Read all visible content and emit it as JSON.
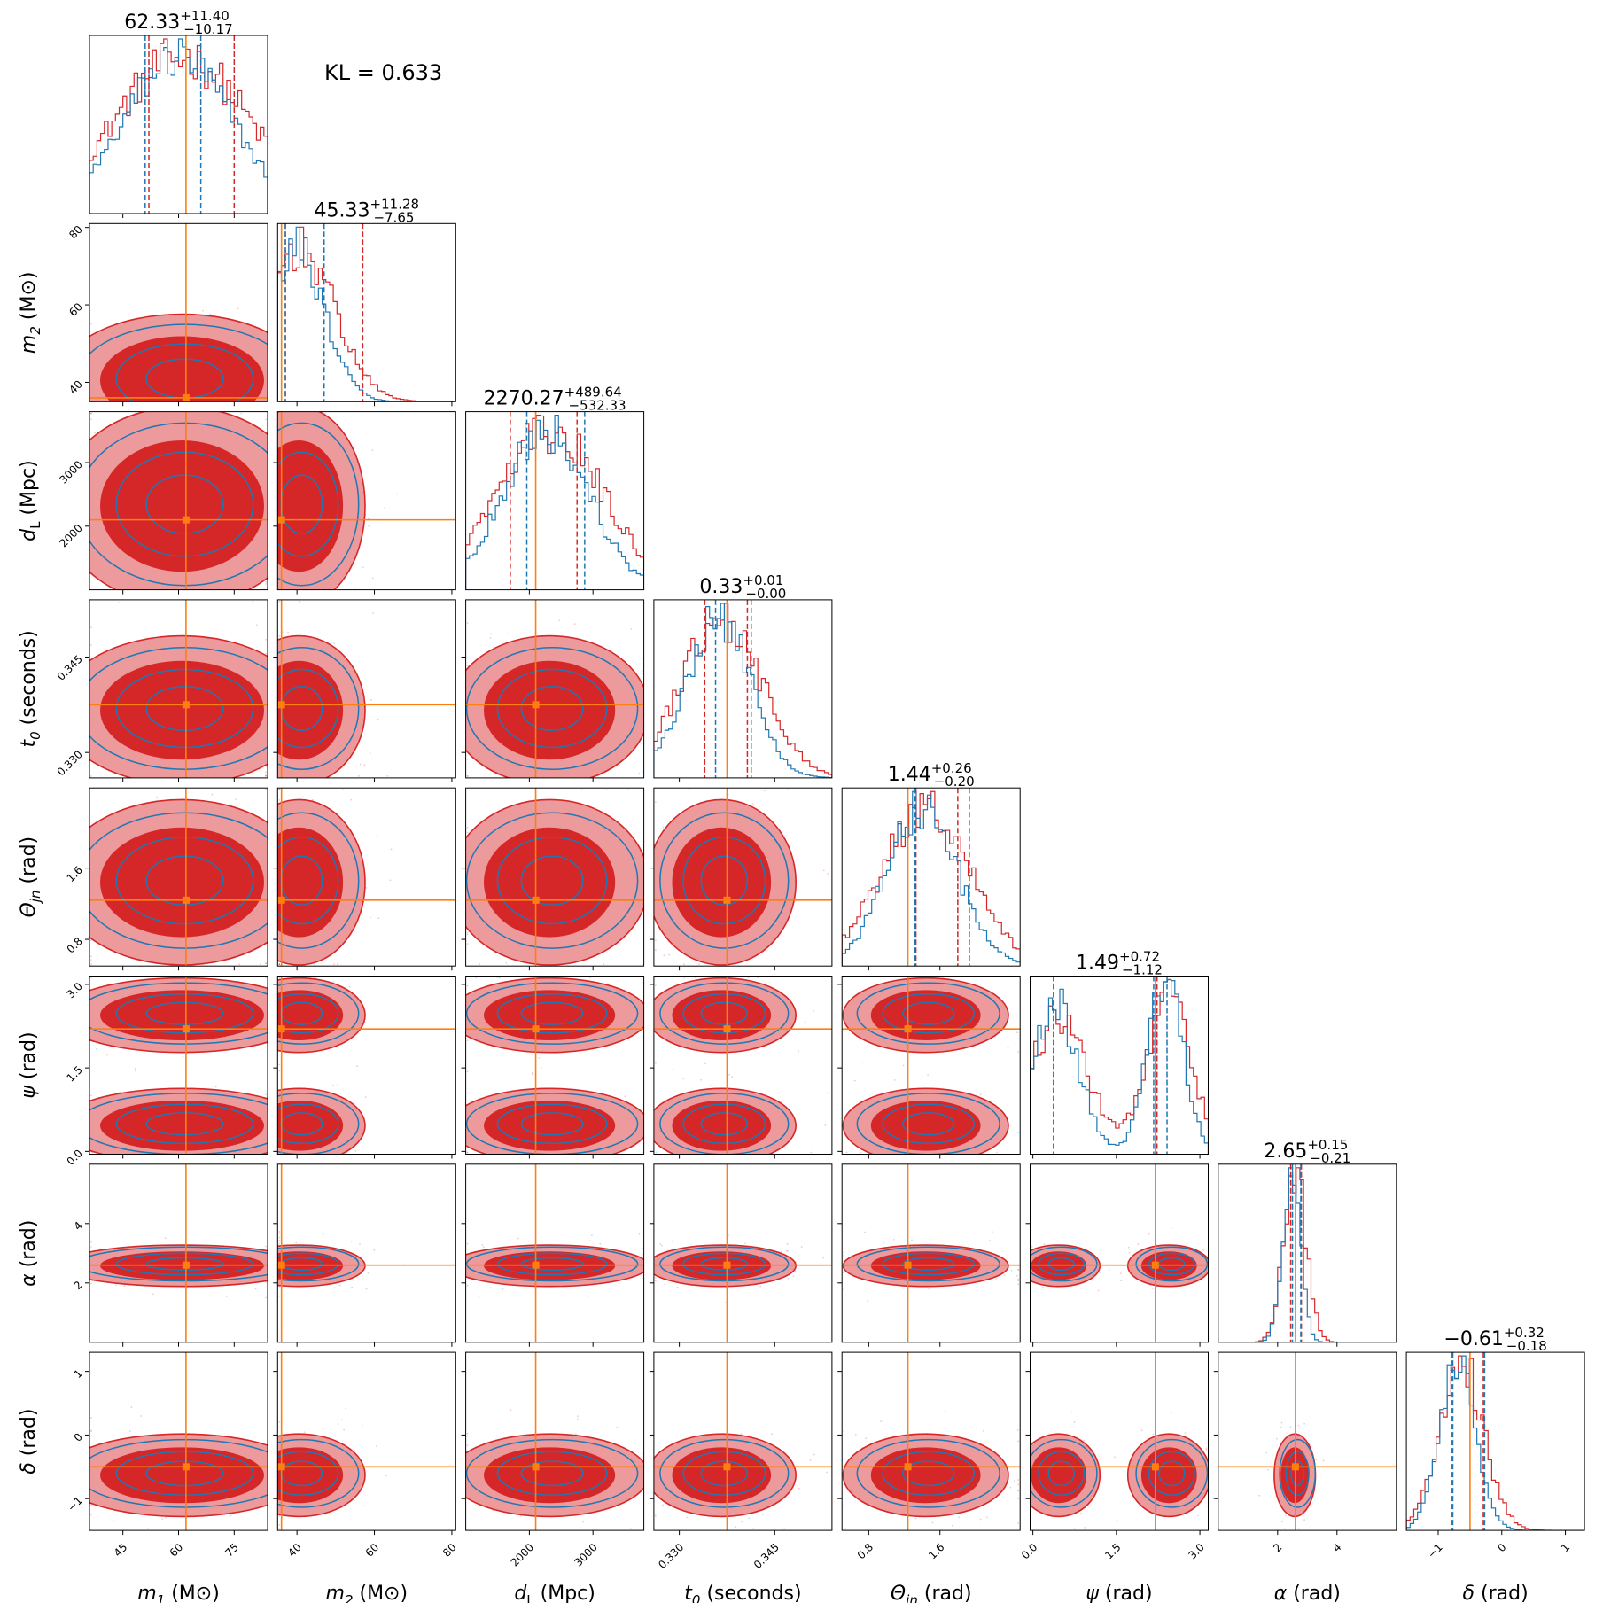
{
  "figure": {
    "kl_text": "KL = 0.633",
    "colors": {
      "red": "#d62728",
      "red_light": "#ec9a9b",
      "blue": "#1f77b4",
      "orange": "#ff7f0e"
    }
  },
  "chart_data": {
    "type": "corner",
    "series": [
      {
        "name": "",
        "color": "#d62728",
        "style": "filled contours + step histograms"
      },
      {
        "name": "",
        "color": "#1f77b4",
        "style": "line contours + step histograms"
      }
    ],
    "injection_color": "#ff7f0e",
    "parameters": [
      {
        "key": "m1",
        "label_main": "m",
        "label_sub": "1",
        "label_unit": " (M⊙)",
        "range": [
          36,
          84
        ],
        "ticks": [
          45,
          60,
          75
        ],
        "tick_labels": [
          "45",
          "60",
          "75"
        ],
        "truth": 62,
        "title": {
          "median": "62.33",
          "plus": "+11.40",
          "minus": "−10.17"
        },
        "quantiles_red": [
          52,
          75
        ],
        "quantiles_blue": [
          51,
          66
        ]
      },
      {
        "key": "m2",
        "label_main": "m",
        "label_sub": "2",
        "label_unit": " (M⊙)",
        "range": [
          35,
          81
        ],
        "ticks": [
          40,
          60,
          80
        ],
        "tick_labels": [
          "40",
          "60",
          "80"
        ],
        "truth": 36,
        "title": {
          "median": "45.33",
          "plus": "+11.28",
          "minus": "−7.65"
        },
        "quantiles_red": [
          37,
          57
        ],
        "quantiles_blue": [
          37,
          47
        ]
      },
      {
        "key": "dL",
        "label_main": "d",
        "label_sub": "L",
        "label_unit": " (Mpc)",
        "range": [
          1000,
          3800
        ],
        "ticks": [
          2000,
          3000
        ],
        "tick_labels": [
          "2000",
          "3000"
        ],
        "truth": 2100,
        "title": {
          "median": "2270.27",
          "plus": "+489.64",
          "minus": "−532.33"
        },
        "quantiles_red": [
          1700,
          2750
        ],
        "quantiles_blue": [
          1960,
          2870
        ]
      },
      {
        "key": "t0",
        "label_main": "t",
        "label_sub": "0",
        "label_unit": " (seconds)",
        "range": [
          0.326,
          0.354
        ],
        "ticks": [
          0.33,
          0.345
        ],
        "tick_labels": [
          "0.330",
          "0.345"
        ],
        "truth": 0.3375,
        "title": {
          "median": "0.33",
          "plus": "+0.01",
          "minus": "−0.00"
        },
        "quantiles_red": [
          0.334,
          0.3407
        ],
        "quantiles_blue": [
          0.3357,
          0.3413
        ]
      },
      {
        "key": "theta_jn",
        "label_main": "Θ",
        "label_sub": "jn",
        "label_unit": " (rad)",
        "range": [
          0.5,
          2.5
        ],
        "ticks": [
          0.8,
          1.6
        ],
        "tick_labels": [
          "0.8",
          "1.6"
        ],
        "truth": 1.24,
        "title": {
          "median": "1.44",
          "plus": "+0.26",
          "minus": "−0.20"
        },
        "quantiles_red": [
          1.33,
          1.8
        ],
        "quantiles_blue": [
          1.32,
          1.93
        ]
      },
      {
        "key": "psi",
        "label_main": "ψ",
        "label_sub": "",
        "label_unit": " (rad)",
        "range": [
          -0.05,
          3.15
        ],
        "ticks": [
          0.0,
          1.5,
          3.0
        ],
        "tick_labels": [
          "0.0",
          "1.5",
          "3.0"
        ],
        "truth": 2.2,
        "title": {
          "median": "1.49",
          "plus": "+0.72",
          "minus": "−1.12"
        },
        "quantiles_red": [
          0.37,
          2.23
        ],
        "quantiles_blue": [
          2.17,
          2.41
        ]
      },
      {
        "key": "alpha",
        "label_main": "α",
        "label_sub": "",
        "label_unit": " (rad)",
        "range": [
          0.0,
          6.0
        ],
        "ticks": [
          2,
          4
        ],
        "tick_labels": [
          "2",
          "4"
        ],
        "truth": 2.6,
        "title": {
          "median": "2.65",
          "plus": "+0.15",
          "minus": "−0.21"
        },
        "quantiles_red": [
          2.44,
          2.8
        ],
        "quantiles_blue": [
          2.5,
          2.78
        ]
      },
      {
        "key": "delta",
        "label_main": "δ",
        "label_sub": "",
        "label_unit": " (rad)",
        "range": [
          -1.5,
          1.3
        ],
        "ticks": [
          -1,
          0,
          1
        ],
        "tick_labels": [
          "−1",
          "0",
          "1"
        ],
        "truth": -0.5,
        "title": {
          "median": "−0.61",
          "plus": "+0.32",
          "minus": "−0.18"
        },
        "quantiles_red": [
          -0.79,
          -0.29
        ],
        "quantiles_blue": [
          -0.77,
          -0.27
        ]
      }
    ],
    "grid": false,
    "legend": "none"
  }
}
